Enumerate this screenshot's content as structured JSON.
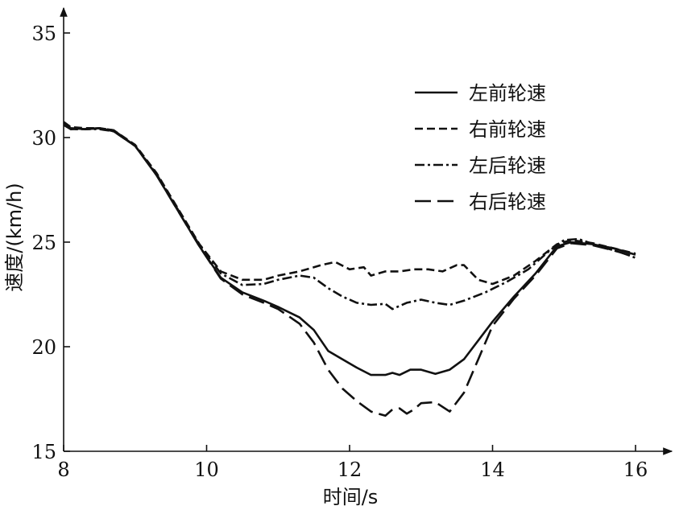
{
  "chart_data": {
    "type": "line",
    "title": "",
    "xlabel": "时间/s",
    "ylabel": "速度/(km/h)",
    "xlim": [
      8,
      16.3
    ],
    "ylim": [
      15,
      36.5
    ],
    "xticks": [
      8,
      10,
      12,
      14,
      16
    ],
    "yticks": [
      15,
      20,
      25,
      30,
      35
    ],
    "grid": false,
    "legend_position": "top-right",
    "series": [
      {
        "name": "左前轮速",
        "dash": "solid",
        "points": [
          [
            8.0,
            30.7
          ],
          [
            8.1,
            30.45
          ],
          [
            8.3,
            30.4
          ],
          [
            8.5,
            30.45
          ],
          [
            8.7,
            30.3
          ],
          [
            9.0,
            29.6
          ],
          [
            9.3,
            28.2
          ],
          [
            9.6,
            26.5
          ],
          [
            9.9,
            24.8
          ],
          [
            10.2,
            23.3
          ],
          [
            10.5,
            22.6
          ],
          [
            10.8,
            22.2
          ],
          [
            11.0,
            21.9
          ],
          [
            11.3,
            21.4
          ],
          [
            11.5,
            20.8
          ],
          [
            11.7,
            19.8
          ],
          [
            11.9,
            19.4
          ],
          [
            12.1,
            19.0
          ],
          [
            12.3,
            18.65
          ],
          [
            12.5,
            18.65
          ],
          [
            12.6,
            18.75
          ],
          [
            12.7,
            18.65
          ],
          [
            12.85,
            18.9
          ],
          [
            13.0,
            18.9
          ],
          [
            13.2,
            18.7
          ],
          [
            13.4,
            18.9
          ],
          [
            13.6,
            19.4
          ],
          [
            13.8,
            20.3
          ],
          [
            14.0,
            21.2
          ],
          [
            14.3,
            22.4
          ],
          [
            14.6,
            23.5
          ],
          [
            14.9,
            24.8
          ],
          [
            15.1,
            25.0
          ],
          [
            15.4,
            24.9
          ],
          [
            15.7,
            24.7
          ],
          [
            16.0,
            24.4
          ]
        ]
      },
      {
        "name": "右前轮速",
        "dash": "10,5",
        "points": [
          [
            8.0,
            30.75
          ],
          [
            8.1,
            30.5
          ],
          [
            8.3,
            30.45
          ],
          [
            8.5,
            30.45
          ],
          [
            8.7,
            30.35
          ],
          [
            9.0,
            29.65
          ],
          [
            9.3,
            28.3
          ],
          [
            9.6,
            26.6
          ],
          [
            9.9,
            24.9
          ],
          [
            10.2,
            23.6
          ],
          [
            10.5,
            23.2
          ],
          [
            10.8,
            23.2
          ],
          [
            11.0,
            23.4
          ],
          [
            11.3,
            23.6
          ],
          [
            11.6,
            23.9
          ],
          [
            11.8,
            24.05
          ],
          [
            12.0,
            23.7
          ],
          [
            12.2,
            23.8
          ],
          [
            12.3,
            23.4
          ],
          [
            12.5,
            23.6
          ],
          [
            12.7,
            23.6
          ],
          [
            12.9,
            23.7
          ],
          [
            13.1,
            23.7
          ],
          [
            13.3,
            23.6
          ],
          [
            13.5,
            23.9
          ],
          [
            13.6,
            23.9
          ],
          [
            13.8,
            23.2
          ],
          [
            14.0,
            23.0
          ],
          [
            14.3,
            23.4
          ],
          [
            14.6,
            24.1
          ],
          [
            14.9,
            24.9
          ],
          [
            15.1,
            25.1
          ],
          [
            15.4,
            24.95
          ],
          [
            15.7,
            24.7
          ],
          [
            16.0,
            24.45
          ]
        ]
      },
      {
        "name": "左后轮速",
        "dash": "12,4,3,4",
        "points": [
          [
            8.0,
            30.6
          ],
          [
            8.1,
            30.4
          ],
          [
            8.3,
            30.4
          ],
          [
            8.5,
            30.4
          ],
          [
            8.7,
            30.3
          ],
          [
            9.0,
            29.6
          ],
          [
            9.3,
            28.25
          ],
          [
            9.6,
            26.55
          ],
          [
            9.9,
            24.85
          ],
          [
            10.2,
            23.5
          ],
          [
            10.5,
            22.95
          ],
          [
            10.8,
            23.0
          ],
          [
            11.0,
            23.2
          ],
          [
            11.3,
            23.4
          ],
          [
            11.5,
            23.3
          ],
          [
            11.7,
            22.8
          ],
          [
            11.9,
            22.4
          ],
          [
            12.1,
            22.1
          ],
          [
            12.3,
            22.0
          ],
          [
            12.5,
            22.05
          ],
          [
            12.6,
            21.8
          ],
          [
            12.8,
            22.1
          ],
          [
            13.0,
            22.25
          ],
          [
            13.2,
            22.1
          ],
          [
            13.4,
            22.0
          ],
          [
            13.6,
            22.2
          ],
          [
            13.9,
            22.6
          ],
          [
            14.2,
            23.1
          ],
          [
            14.5,
            23.7
          ],
          [
            14.8,
            24.6
          ],
          [
            15.0,
            25.1
          ],
          [
            15.2,
            25.15
          ],
          [
            15.5,
            24.8
          ],
          [
            15.8,
            24.5
          ],
          [
            16.0,
            24.25
          ]
        ]
      },
      {
        "name": "右后轮速",
        "dash": "20,8",
        "points": [
          [
            8.0,
            30.65
          ],
          [
            8.1,
            30.4
          ],
          [
            8.3,
            30.4
          ],
          [
            8.5,
            30.45
          ],
          [
            8.7,
            30.35
          ],
          [
            9.0,
            29.6
          ],
          [
            9.3,
            28.2
          ],
          [
            9.6,
            26.5
          ],
          [
            9.9,
            24.8
          ],
          [
            10.2,
            23.25
          ],
          [
            10.5,
            22.5
          ],
          [
            10.8,
            22.1
          ],
          [
            11.0,
            21.8
          ],
          [
            11.3,
            21.1
          ],
          [
            11.5,
            20.2
          ],
          [
            11.7,
            18.9
          ],
          [
            11.9,
            18.0
          ],
          [
            12.1,
            17.4
          ],
          [
            12.3,
            16.9
          ],
          [
            12.5,
            16.7
          ],
          [
            12.6,
            17.0
          ],
          [
            12.7,
            17.05
          ],
          [
            12.8,
            16.8
          ],
          [
            12.9,
            17.0
          ],
          [
            13.0,
            17.3
          ],
          [
            13.2,
            17.35
          ],
          [
            13.4,
            16.9
          ],
          [
            13.6,
            17.8
          ],
          [
            13.8,
            19.4
          ],
          [
            14.0,
            21.0
          ],
          [
            14.3,
            22.3
          ],
          [
            14.6,
            23.4
          ],
          [
            14.9,
            24.7
          ],
          [
            15.1,
            24.95
          ],
          [
            15.4,
            24.85
          ],
          [
            15.7,
            24.6
          ],
          [
            16.0,
            24.3
          ]
        ]
      }
    ]
  }
}
